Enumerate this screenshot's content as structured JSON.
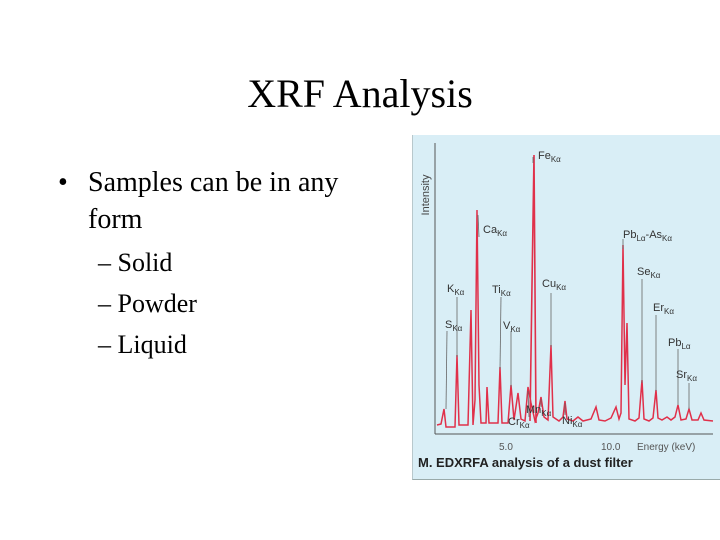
{
  "slide": {
    "title": "XRF Analysis",
    "bullet": "Samples can be in any form",
    "sub_items": [
      "– Solid",
      "– Powder",
      "– Liquid"
    ]
  },
  "figure": {
    "caption": "M. EDXRFA analysis of a dust filter",
    "y_axis_label": "Intensity",
    "x_ticks": [
      {
        "value": 5.0,
        "label": "5.0"
      },
      {
        "value": 10.0,
        "label": "10.0"
      }
    ],
    "x_axis_label": "Energy (keV)",
    "peak_labels": [
      {
        "main": "Fe",
        "sub": "Kα"
      },
      {
        "main": "Ca",
        "sub": "Kα"
      },
      {
        "main": "Pb",
        "sub": "Lα",
        "extra": "-As",
        "extra_sub": "Kα"
      },
      {
        "main": "Se",
        "sub": "Kα"
      },
      {
        "main": "K",
        "sub": "Kα"
      },
      {
        "main": "Ti",
        "sub": "Kα"
      },
      {
        "main": "Cu",
        "sub": "Kα"
      },
      {
        "main": "Er",
        "sub": "Kα"
      },
      {
        "main": "S",
        "sub": "Kα"
      },
      {
        "main": "V",
        "sub": "Kα"
      },
      {
        "main": "Pb",
        "sub": "Lα"
      },
      {
        "main": "Sr",
        "sub": "Kα"
      },
      {
        "main": "Mn",
        "sub": "Kα"
      },
      {
        "main": "Cr",
        "sub": "Kα"
      },
      {
        "main": "Ni",
        "sub": "Kα"
      }
    ],
    "colors": {
      "spectrum": "#e0304a",
      "leader": "#555555",
      "background": "#d9eef6"
    }
  }
}
